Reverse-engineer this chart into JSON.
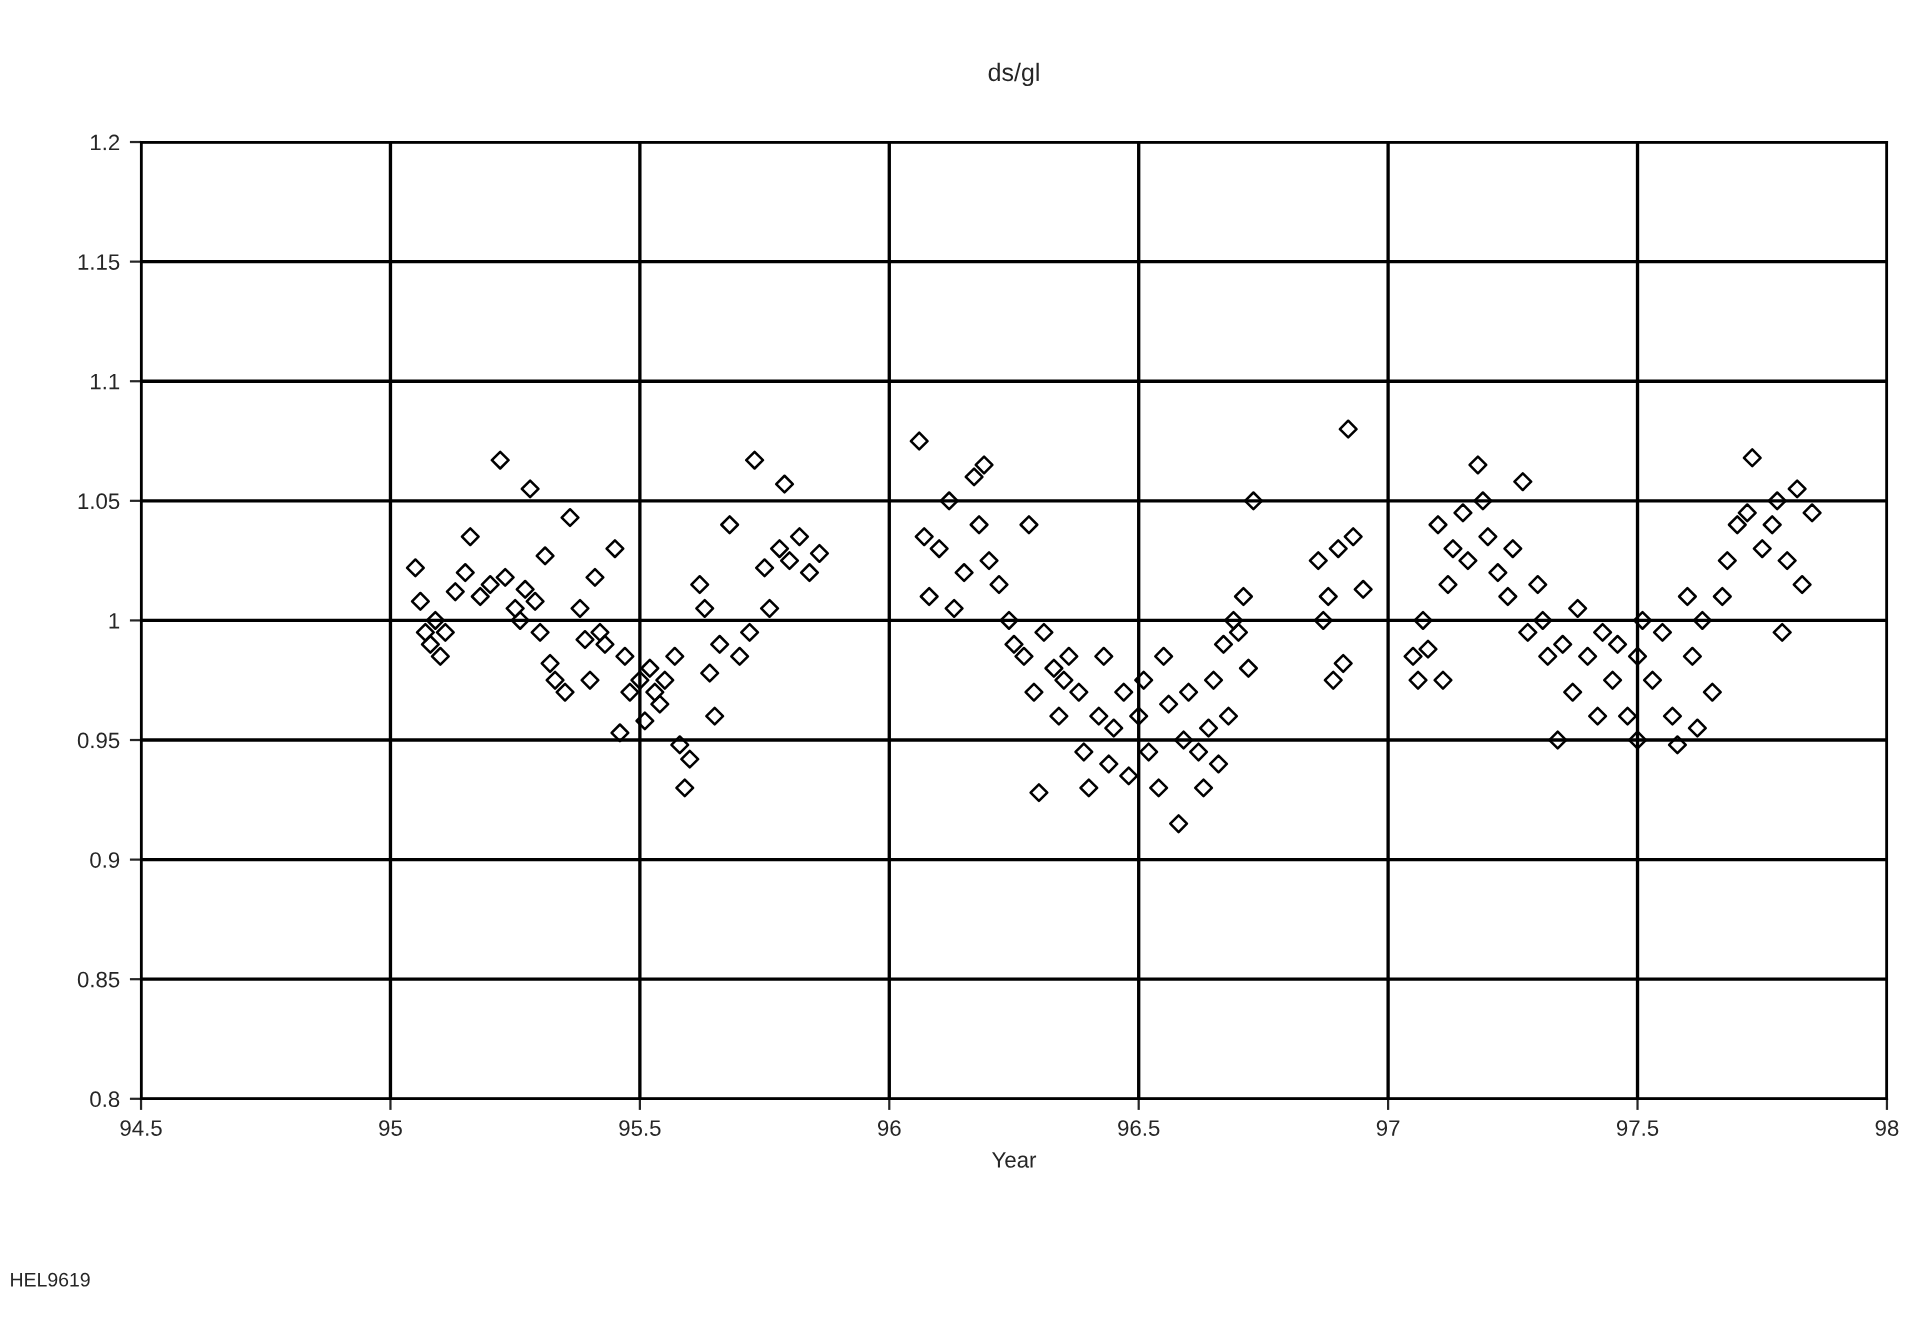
{
  "chart_data": {
    "type": "scatter",
    "title": "ds/gl",
    "xlabel": "Year",
    "annotations": [
      "HEL9619"
    ],
    "xlim": [
      94.5,
      98
    ],
    "xticks": [
      94.5,
      95,
      95.5,
      96,
      96.5,
      97,
      97.5,
      98
    ],
    "ylim": [
      0.8,
      1.2
    ],
    "yticks": [
      0.8,
      0.85,
      0.9,
      0.95,
      1,
      1.05,
      1.1,
      1.15,
      1.2
    ],
    "grid": true,
    "marker": "diamond",
    "series": [
      {
        "color": "#000000",
        "x": [
          95.05,
          95.06,
          95.07,
          95.08,
          95.09,
          95.1,
          95.11,
          95.13,
          95.15,
          95.16,
          95.18,
          95.2,
          95.22,
          95.23,
          95.25,
          95.26,
          95.27,
          95.28,
          95.29,
          95.3,
          95.31,
          95.32,
          95.33,
          95.35,
          95.36,
          95.38,
          95.39,
          95.4,
          95.41,
          95.42,
          95.43,
          95.45,
          95.46,
          95.47,
          95.48,
          95.5,
          95.51,
          95.52,
          95.53,
          95.54,
          95.55,
          95.57,
          95.58,
          95.59,
          95.6,
          95.62,
          95.63,
          95.64,
          95.65,
          95.66,
          95.68,
          95.7,
          95.72,
          95.73,
          95.75,
          95.76,
          95.78,
          95.79,
          95.8,
          95.82,
          95.84,
          95.86,
          96.06,
          96.07,
          96.08,
          96.1,
          96.12,
          96.13,
          96.15,
          96.17,
          96.18,
          96.19,
          96.2,
          96.22,
          96.24,
          96.25,
          96.27,
          96.28,
          96.29,
          96.3,
          96.31,
          96.33,
          96.34,
          96.35,
          96.36,
          96.38,
          96.39,
          96.4,
          96.42,
          96.43,
          96.44,
          96.45,
          96.47,
          96.48,
          96.5,
          96.51,
          96.52,
          96.54,
          96.55,
          96.56,
          96.58,
          96.59,
          96.6,
          96.62,
          96.63,
          96.64,
          96.65,
          96.66,
          96.67,
          96.68,
          96.69,
          96.7,
          96.71,
          96.72,
          96.73,
          96.86,
          96.87,
          96.88,
          96.89,
          96.9,
          96.91,
          96.92,
          96.93,
          96.95,
          97.05,
          97.06,
          97.07,
          97.08,
          97.1,
          97.11,
          97.12,
          97.13,
          97.15,
          97.16,
          97.18,
          97.19,
          97.2,
          97.22,
          97.24,
          97.25,
          97.27,
          97.28,
          97.3,
          97.31,
          97.32,
          97.34,
          97.35,
          97.37,
          97.38,
          97.4,
          97.42,
          97.43,
          97.45,
          97.46,
          97.48,
          97.5,
          97.5,
          97.51,
          97.53,
          97.55,
          97.57,
          97.58,
          97.6,
          97.61,
          97.62,
          97.63,
          97.65,
          97.67,
          97.68,
          97.7,
          97.72,
          97.73,
          97.75,
          97.77,
          97.78,
          97.79,
          97.8,
          97.82,
          97.83,
          97.85
        ],
        "values": [
          1.022,
          1.008,
          0.995,
          0.99,
          1.0,
          0.985,
          0.995,
          1.012,
          1.02,
          1.035,
          1.01,
          1.015,
          1.067,
          1.018,
          1.005,
          1.0,
          1.013,
          1.055,
          1.008,
          0.995,
          1.027,
          0.982,
          0.975,
          0.97,
          1.043,
          1.005,
          0.992,
          0.975,
          1.018,
          0.995,
          0.99,
          1.03,
          0.953,
          0.985,
          0.97,
          0.975,
          0.958,
          0.98,
          0.97,
          0.965,
          0.975,
          0.985,
          0.948,
          0.93,
          0.942,
          1.015,
          1.005,
          0.978,
          0.96,
          0.99,
          1.04,
          0.985,
          0.995,
          1.067,
          1.022,
          1.005,
          1.03,
          1.057,
          1.025,
          1.035,
          1.02,
          1.028,
          1.075,
          1.035,
          1.01,
          1.03,
          1.05,
          1.005,
          1.02,
          1.06,
          1.04,
          1.065,
          1.025,
          1.015,
          1.0,
          0.99,
          0.985,
          1.04,
          0.97,
          0.928,
          0.995,
          0.98,
          0.96,
          0.975,
          0.985,
          0.97,
          0.945,
          0.93,
          0.96,
          0.985,
          0.94,
          0.955,
          0.97,
          0.935,
          0.96,
          0.975,
          0.945,
          0.93,
          0.985,
          0.965,
          0.915,
          0.95,
          0.97,
          0.945,
          0.93,
          0.955,
          0.975,
          0.94,
          0.99,
          0.96,
          1.0,
          0.995,
          1.01,
          0.98,
          1.05,
          1.025,
          1.0,
          1.01,
          0.975,
          1.03,
          0.982,
          1.08,
          1.035,
          1.013,
          0.985,
          0.975,
          1.0,
          0.988,
          1.04,
          0.975,
          1.015,
          1.03,
          1.045,
          1.025,
          1.065,
          1.05,
          1.035,
          1.02,
          1.01,
          1.03,
          1.058,
          0.995,
          1.015,
          1.0,
          0.985,
          0.95,
          0.99,
          0.97,
          1.005,
          0.985,
          0.96,
          0.995,
          0.975,
          0.99,
          0.96,
          0.95,
          0.985,
          1.0,
          0.975,
          0.995,
          0.96,
          0.948,
          1.01,
          0.985,
          0.955,
          1.0,
          0.97,
          1.01,
          1.025,
          1.04,
          1.045,
          1.068,
          1.03,
          1.04,
          1.05,
          0.995,
          1.025,
          1.055,
          1.015,
          1.045
        ]
      }
    ]
  }
}
